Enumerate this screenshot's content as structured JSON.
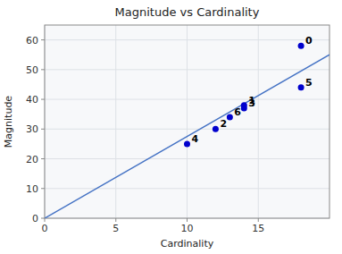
{
  "chart_data": {
    "type": "scatter",
    "title": "Magnitude vs Cardinality",
    "xlabel": "Cardinality",
    "ylabel": "Magnitude",
    "series": [
      {
        "type": "scatter",
        "color": "#0000CD",
        "x": [
          18,
          14,
          12,
          14,
          10,
          18,
          13
        ],
        "values": [
          58,
          38,
          30,
          37,
          25,
          44,
          34
        ],
        "annotations": [
          "0",
          "1",
          "2",
          "3",
          "4",
          "5",
          "6"
        ]
      },
      {
        "type": "line",
        "color": "#4472C4",
        "x": [
          0,
          20
        ],
        "values": [
          0,
          55
        ]
      }
    ],
    "xlim": [
      0,
      20
    ],
    "ylim": [
      0,
      65
    ],
    "xticks": [
      0,
      5,
      10,
      15
    ],
    "yticks": [
      0,
      10,
      20,
      30,
      40,
      50,
      60
    ],
    "grid": true
  }
}
